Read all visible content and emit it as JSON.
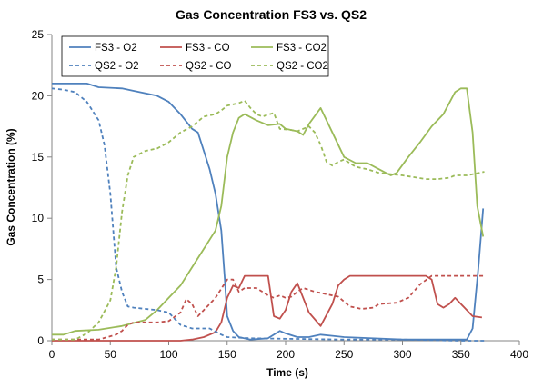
{
  "chart_data": {
    "type": "line",
    "title": "Gas Concentration FS3 vs. QS2",
    "xlabel": "Time (s)",
    "ylabel": "Gas Concentration (%)",
    "xlim": [
      0,
      400
    ],
    "ylim": [
      0,
      25
    ],
    "xticks": [
      0,
      50,
      100,
      150,
      200,
      250,
      300,
      350,
      400
    ],
    "yticks": [
      0,
      5,
      10,
      15,
      20,
      25
    ],
    "grid": false,
    "legend_position": "top-left",
    "colors": {
      "blue": "#4f81bd",
      "red": "#c0504d",
      "green": "#9bbb59",
      "axis": "#868686"
    },
    "series": [
      {
        "name": "FS3 - O2",
        "color": "#4f81bd",
        "dash": "solid",
        "points": [
          [
            0,
            21
          ],
          [
            30,
            21
          ],
          [
            40,
            20.7
          ],
          [
            60,
            20.6
          ],
          [
            70,
            20.4
          ],
          [
            90,
            20
          ],
          [
            100,
            19.5
          ],
          [
            110,
            18.5
          ],
          [
            120,
            17.3
          ],
          [
            125,
            17
          ],
          [
            130,
            15.5
          ],
          [
            135,
            14
          ],
          [
            140,
            12
          ],
          [
            145,
            9
          ],
          [
            148,
            5
          ],
          [
            150,
            2
          ],
          [
            155,
            0.8
          ],
          [
            160,
            0.3
          ],
          [
            170,
            0.1
          ],
          [
            185,
            0.2
          ],
          [
            195,
            0.8
          ],
          [
            200,
            0.6
          ],
          [
            210,
            0.3
          ],
          [
            220,
            0.3
          ],
          [
            230,
            0.5
          ],
          [
            240,
            0.4
          ],
          [
            250,
            0.3
          ],
          [
            300,
            0.1
          ],
          [
            355,
            0.1
          ],
          [
            360,
            1
          ],
          [
            365,
            6
          ],
          [
            369,
            10.8
          ]
        ]
      },
      {
        "name": "FS3 - CO",
        "color": "#c0504d",
        "dash": "solid",
        "points": [
          [
            0,
            0
          ],
          [
            110,
            0
          ],
          [
            120,
            0.1
          ],
          [
            130,
            0.3
          ],
          [
            140,
            0.7
          ],
          [
            145,
            1.5
          ],
          [
            150,
            3.5
          ],
          [
            155,
            4.5
          ],
          [
            160,
            4.3
          ],
          [
            165,
            5.3
          ],
          [
            185,
            5.3
          ],
          [
            190,
            2
          ],
          [
            195,
            1.8
          ],
          [
            200,
            2.5
          ],
          [
            205,
            4
          ],
          [
            210,
            4.7
          ],
          [
            215,
            3.5
          ],
          [
            220,
            2.3
          ],
          [
            230,
            1.2
          ],
          [
            240,
            3
          ],
          [
            245,
            4.5
          ],
          [
            250,
            5
          ],
          [
            255,
            5.3
          ],
          [
            320,
            5.3
          ],
          [
            325,
            5
          ],
          [
            330,
            3
          ],
          [
            335,
            2.7
          ],
          [
            340,
            3
          ],
          [
            345,
            3.5
          ],
          [
            350,
            3
          ],
          [
            355,
            2.5
          ],
          [
            360,
            2
          ],
          [
            368,
            1.9
          ]
        ]
      },
      {
        "name": "FS3 - CO2",
        "color": "#9bbb59",
        "dash": "solid",
        "points": [
          [
            0,
            0.5
          ],
          [
            10,
            0.5
          ],
          [
            20,
            0.8
          ],
          [
            40,
            0.9
          ],
          [
            60,
            1.2
          ],
          [
            80,
            1.7
          ],
          [
            90,
            2.5
          ],
          [
            100,
            3.5
          ],
          [
            110,
            4.5
          ],
          [
            120,
            6
          ],
          [
            130,
            7.5
          ],
          [
            140,
            9
          ],
          [
            145,
            11
          ],
          [
            150,
            15
          ],
          [
            155,
            17
          ],
          [
            160,
            18.2
          ],
          [
            165,
            18.5
          ],
          [
            175,
            18
          ],
          [
            185,
            17.6
          ],
          [
            195,
            17.7
          ],
          [
            200,
            17.3
          ],
          [
            210,
            17.1
          ],
          [
            215,
            16.8
          ],
          [
            220,
            17.7
          ],
          [
            230,
            19
          ],
          [
            240,
            17
          ],
          [
            250,
            15
          ],
          [
            260,
            14.5
          ],
          [
            270,
            14.5
          ],
          [
            280,
            14
          ],
          [
            290,
            13.5
          ],
          [
            295,
            13.7
          ],
          [
            305,
            15
          ],
          [
            315,
            16.2
          ],
          [
            325,
            17.5
          ],
          [
            335,
            18.5
          ],
          [
            345,
            20.3
          ],
          [
            350,
            20.6
          ],
          [
            355,
            20.6
          ],
          [
            360,
            17
          ],
          [
            364,
            11
          ],
          [
            369,
            8.5
          ]
        ]
      },
      {
        "name": "QS2 - O2",
        "color": "#4f81bd",
        "dash": "dashed",
        "points": [
          [
            0,
            20.6
          ],
          [
            10,
            20.5
          ],
          [
            20,
            20.3
          ],
          [
            30,
            19.5
          ],
          [
            40,
            18
          ],
          [
            45,
            16
          ],
          [
            50,
            12
          ],
          [
            55,
            6
          ],
          [
            60,
            4
          ],
          [
            65,
            2.8
          ],
          [
            70,
            2.7
          ],
          [
            90,
            2.5
          ],
          [
            100,
            2.3
          ],
          [
            110,
            1.3
          ],
          [
            120,
            1
          ],
          [
            135,
            1
          ],
          [
            145,
            0.5
          ],
          [
            150,
            0.3
          ],
          [
            170,
            0.2
          ],
          [
            250,
            0.1
          ],
          [
            300,
            0.1
          ],
          [
            350,
            0
          ],
          [
            370,
            0
          ]
        ]
      },
      {
        "name": "QS2 - CO",
        "color": "#c0504d",
        "dash": "dashed",
        "points": [
          [
            0,
            0.1
          ],
          [
            40,
            0.1
          ],
          [
            55,
            0.5
          ],
          [
            60,
            0.8
          ],
          [
            65,
            1.3
          ],
          [
            70,
            1.5
          ],
          [
            90,
            1.5
          ],
          [
            100,
            1.6
          ],
          [
            110,
            2.3
          ],
          [
            115,
            3.4
          ],
          [
            120,
            3
          ],
          [
            125,
            2
          ],
          [
            130,
            2.5
          ],
          [
            140,
            3.5
          ],
          [
            150,
            5
          ],
          [
            155,
            5
          ],
          [
            160,
            4
          ],
          [
            165,
            4.3
          ],
          [
            175,
            4.3
          ],
          [
            185,
            3.7
          ],
          [
            190,
            3.5
          ],
          [
            195,
            3.7
          ],
          [
            200,
            3.5
          ],
          [
            205,
            3.6
          ],
          [
            210,
            4
          ],
          [
            215,
            4.3
          ],
          [
            225,
            4
          ],
          [
            235,
            3.8
          ],
          [
            245,
            3.6
          ],
          [
            255,
            2.8
          ],
          [
            265,
            2.6
          ],
          [
            275,
            2.7
          ],
          [
            280,
            3
          ],
          [
            295,
            3.1
          ],
          [
            305,
            3.5
          ],
          [
            315,
            4.6
          ],
          [
            325,
            5.3
          ],
          [
            340,
            5.3
          ],
          [
            370,
            5.3
          ]
        ]
      },
      {
        "name": "QS2 - CO2",
        "color": "#9bbb59",
        "dash": "dashed",
        "points": [
          [
            0,
            0.1
          ],
          [
            20,
            0.1
          ],
          [
            30,
            0.6
          ],
          [
            40,
            1.5
          ],
          [
            50,
            3.3
          ],
          [
            55,
            6
          ],
          [
            60,
            10.5
          ],
          [
            65,
            13.5
          ],
          [
            70,
            15
          ],
          [
            80,
            15.5
          ],
          [
            90,
            15.7
          ],
          [
            100,
            16.2
          ],
          [
            110,
            17
          ],
          [
            120,
            17.5
          ],
          [
            130,
            18.3
          ],
          [
            140,
            18.5
          ],
          [
            145,
            18.8
          ],
          [
            150,
            19.2
          ],
          [
            160,
            19.4
          ],
          [
            165,
            19.6
          ],
          [
            170,
            19
          ],
          [
            175,
            18.5
          ],
          [
            180,
            18.3
          ],
          [
            190,
            18.6
          ],
          [
            195,
            17.3
          ],
          [
            205,
            17.2
          ],
          [
            210,
            17.1
          ],
          [
            220,
            17.5
          ],
          [
            225,
            17
          ],
          [
            230,
            16
          ],
          [
            235,
            14.6
          ],
          [
            240,
            14.3
          ],
          [
            245,
            14.6
          ],
          [
            250,
            14.8
          ],
          [
            260,
            14.2
          ],
          [
            270,
            14
          ],
          [
            280,
            13.7
          ],
          [
            300,
            13.5
          ],
          [
            320,
            13.2
          ],
          [
            330,
            13.2
          ],
          [
            340,
            13.3
          ],
          [
            345,
            13.5
          ],
          [
            355,
            13.5
          ],
          [
            360,
            13.6
          ],
          [
            370,
            13.8
          ]
        ]
      }
    ]
  }
}
